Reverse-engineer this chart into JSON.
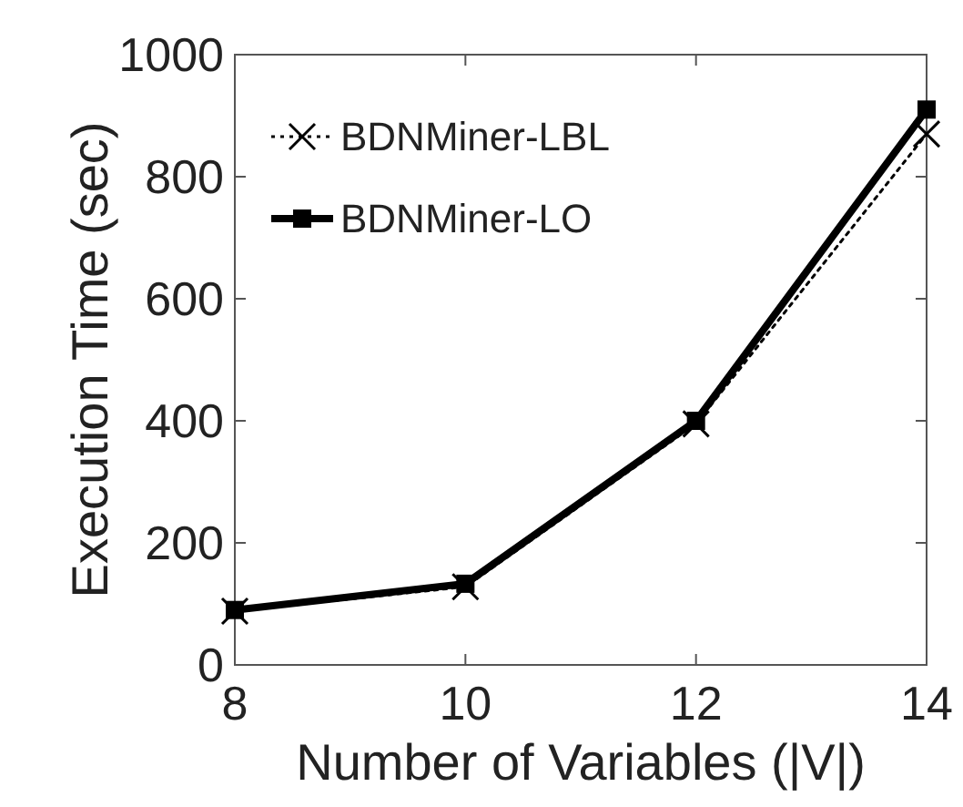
{
  "chart_data": {
    "type": "line",
    "xlabel": "Number of Variables (|V|)",
    "ylabel": "Execution Time (sec)",
    "x": [
      8,
      10,
      12,
      14
    ],
    "xlim": [
      8,
      14
    ],
    "xticks": [
      8,
      10,
      12,
      14
    ],
    "ylim": [
      0,
      1000
    ],
    "yticks": [
      0,
      200,
      400,
      600,
      800,
      1000
    ],
    "legend": "top left",
    "grid": false,
    "series": [
      {
        "name": "BDNMiner-LBL",
        "color": "#000000",
        "values": [
          88,
          128,
          395,
          870
        ],
        "marker": "cross",
        "line_style": "dotted"
      },
      {
        "name": "BDNMiner-LO",
        "color": "#000000",
        "values": [
          90,
          133,
          400,
          910
        ],
        "marker": "square",
        "line_style": "solid"
      }
    ]
  }
}
